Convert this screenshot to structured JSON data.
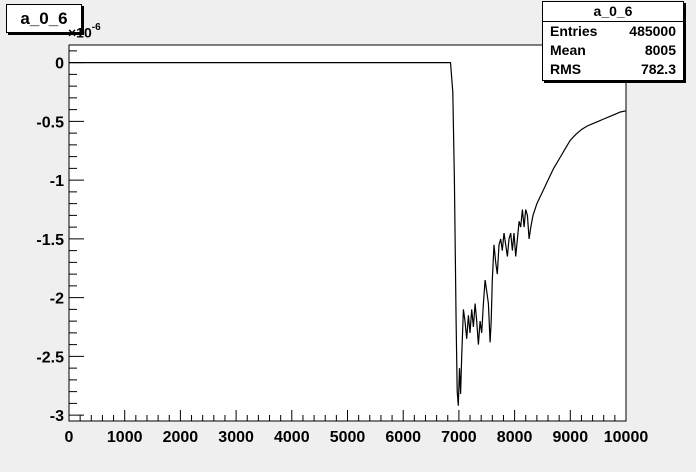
{
  "title": "a_0_6",
  "stats": {
    "header": "a_0_6",
    "rows": [
      {
        "label": "Entries",
        "value": "485000"
      },
      {
        "label": "Mean",
        "value": "8005"
      },
      {
        "label": "RMS",
        "value": "782.3"
      }
    ]
  },
  "y_multiplier": {
    "base": "×10",
    "exponent": "-6"
  },
  "chart_data": {
    "type": "line",
    "title": "a_0_6",
    "xlabel": "",
    "ylabel": "",
    "xlim": [
      0,
      10000
    ],
    "ylim": [
      -3.05,
      0.15
    ],
    "x_ticks": [
      0,
      1000,
      2000,
      3000,
      4000,
      5000,
      6000,
      7000,
      8000,
      9000,
      10000
    ],
    "x_tick_labels": [
      "0",
      "1000",
      "2000",
      "3000",
      "4000",
      "5000",
      "6000",
      "7000",
      "8000",
      "9000",
      "10000"
    ],
    "y_ticks": [
      0,
      -0.5,
      -1,
      -1.5,
      -2,
      -2.5,
      -3
    ],
    "y_tick_labels": [
      "0",
      "-0.5",
      "-1",
      "-1.5",
      "-2",
      "-2.5",
      "-3"
    ],
    "grid": false,
    "series": [
      {
        "points": [
          [
            0,
            0
          ],
          [
            6850,
            0
          ],
          [
            6890,
            -0.25
          ],
          [
            6920,
            -1.0
          ],
          [
            6950,
            -2.2
          ],
          [
            6970,
            -2.8
          ],
          [
            6990,
            -2.92
          ],
          [
            7010,
            -2.6
          ],
          [
            7030,
            -2.82
          ],
          [
            7050,
            -2.5
          ],
          [
            7080,
            -2.1
          ],
          [
            7110,
            -2.2
          ],
          [
            7140,
            -2.35
          ],
          [
            7170,
            -2.15
          ],
          [
            7200,
            -2.3
          ],
          [
            7230,
            -2.1
          ],
          [
            7260,
            -2.25
          ],
          [
            7290,
            -2.05
          ],
          [
            7320,
            -2.2
          ],
          [
            7350,
            -2.4
          ],
          [
            7380,
            -2.2
          ],
          [
            7410,
            -2.3
          ],
          [
            7440,
            -2.05
          ],
          [
            7470,
            -1.85
          ],
          [
            7500,
            -1.95
          ],
          [
            7530,
            -2.05
          ],
          [
            7560,
            -2.38
          ],
          [
            7580,
            -2.2
          ],
          [
            7600,
            -1.85
          ],
          [
            7630,
            -1.55
          ],
          [
            7660,
            -1.7
          ],
          [
            7690,
            -1.8
          ],
          [
            7720,
            -1.55
          ],
          [
            7750,
            -1.5
          ],
          [
            7780,
            -1.6
          ],
          [
            7810,
            -1.45
          ],
          [
            7840,
            -1.55
          ],
          [
            7870,
            -1.65
          ],
          [
            7900,
            -1.5
          ],
          [
            7930,
            -1.45
          ],
          [
            7960,
            -1.6
          ],
          [
            7990,
            -1.45
          ],
          [
            8020,
            -1.65
          ],
          [
            8050,
            -1.5
          ],
          [
            8080,
            -1.35
          ],
          [
            8110,
            -1.4
          ],
          [
            8140,
            -1.25
          ],
          [
            8170,
            -1.4
          ],
          [
            8200,
            -1.25
          ],
          [
            8230,
            -1.3
          ],
          [
            8260,
            -1.5
          ],
          [
            8290,
            -1.4
          ],
          [
            8330,
            -1.3
          ],
          [
            8400,
            -1.2
          ],
          [
            8500,
            -1.1
          ],
          [
            8600,
            -1.0
          ],
          [
            8700,
            -0.9
          ],
          [
            8800,
            -0.82
          ],
          [
            8900,
            -0.74
          ],
          [
            9000,
            -0.66
          ],
          [
            9100,
            -0.61
          ],
          [
            9200,
            -0.57
          ],
          [
            9300,
            -0.54
          ],
          [
            9400,
            -0.52
          ],
          [
            9500,
            -0.5
          ],
          [
            9600,
            -0.48
          ],
          [
            9700,
            -0.46
          ],
          [
            9800,
            -0.44
          ],
          [
            9900,
            -0.42
          ],
          [
            10000,
            -0.41
          ]
        ]
      }
    ]
  }
}
